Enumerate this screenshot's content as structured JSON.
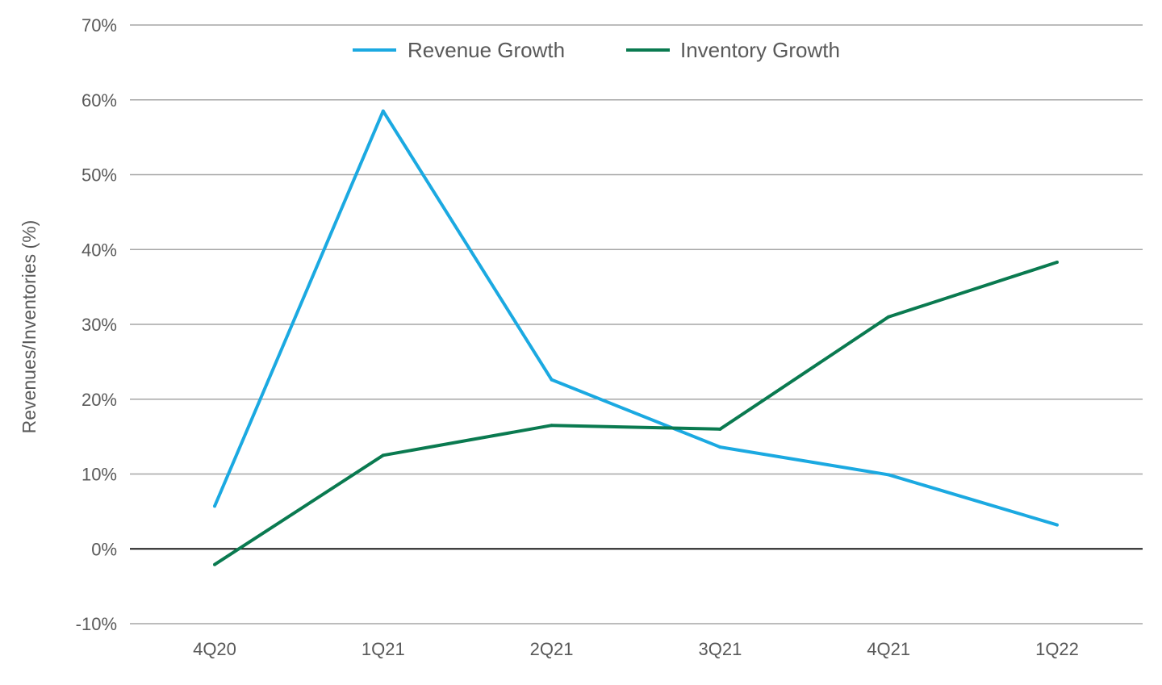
{
  "chart_data": {
    "type": "line",
    "title": "",
    "xlabel": "",
    "ylabel": "Revenues/Inventories (%)",
    "categories": [
      "4Q20",
      "1Q21",
      "2Q21",
      "3Q21",
      "4Q21",
      "1Q22"
    ],
    "ylim": [
      -10,
      70
    ],
    "yticks": [
      -10,
      0,
      10,
      20,
      30,
      40,
      50,
      60,
      70
    ],
    "ytick_labels": [
      "-10%",
      "0%",
      "10%",
      "20%",
      "30%",
      "40%",
      "50%",
      "60%",
      "70%"
    ],
    "grid": true,
    "legend_position": "top-center",
    "series": [
      {
        "name": "Revenue Growth",
        "color": "#1ba9e1",
        "values": [
          5.7,
          58.5,
          22.6,
          13.6,
          9.9,
          3.2
        ]
      },
      {
        "name": "Inventory Growth",
        "color": "#0a7a50",
        "values": [
          -2.1,
          12.5,
          16.5,
          16.0,
          31.0,
          38.3
        ]
      }
    ]
  }
}
